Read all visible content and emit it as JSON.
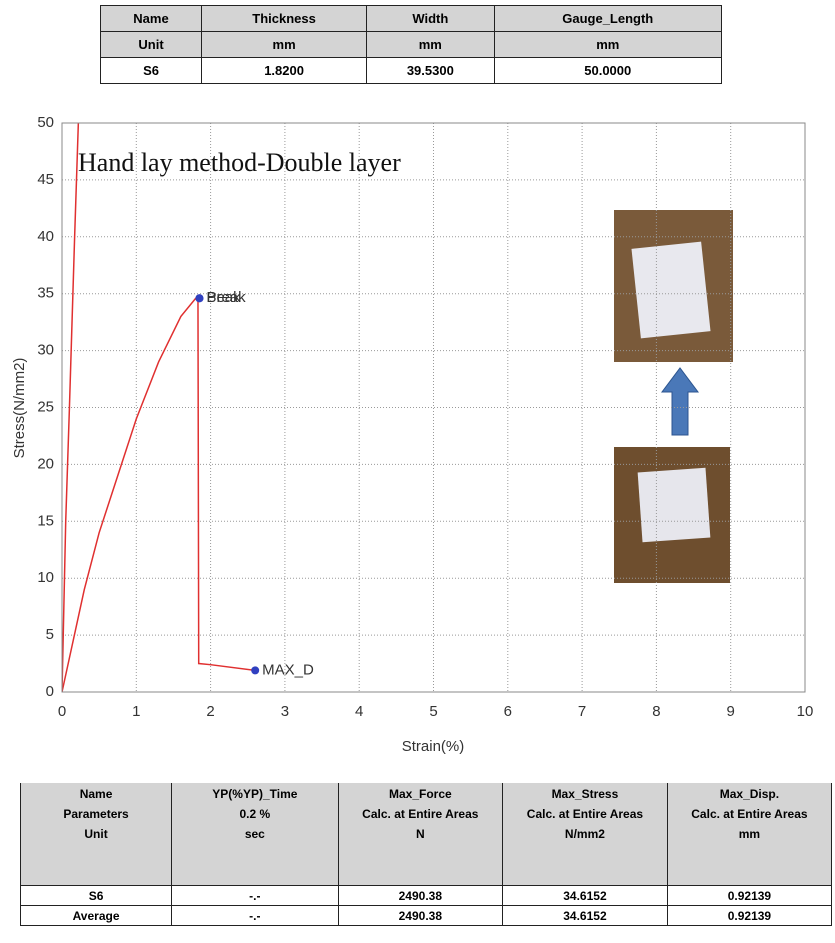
{
  "top_table": {
    "header_rows": [
      [
        "Name",
        "Thickness",
        "Width",
        "Gauge_Length"
      ],
      [
        "Unit",
        "mm",
        "mm",
        "mm"
      ]
    ],
    "rows": [
      [
        "S6",
        "1.8200",
        "39.5300",
        "50.0000"
      ]
    ]
  },
  "chart_data": {
    "type": "line",
    "title": "Hand lay method-Double layer",
    "x_label": "Strain(%)",
    "y_label": "Stress(N/mm2)",
    "xlim": [
      0,
      10
    ],
    "ylim": [
      0,
      50
    ],
    "xticks": [
      0,
      1,
      2,
      3,
      4,
      5,
      6,
      7,
      8,
      9,
      10
    ],
    "yticks": [
      0,
      5,
      10,
      15,
      20,
      25,
      30,
      35,
      40,
      45,
      50
    ],
    "grid": true,
    "series": [
      {
        "color": "#e03030",
        "x": [
          0,
          0.05,
          0.1,
          0.17,
          0.22
        ],
        "values": [
          0,
          15,
          25,
          40,
          50
        ]
      },
      {
        "color": "#e03030",
        "x": [
          0,
          0.1,
          0.3,
          0.5,
          0.8,
          1.0,
          1.3,
          1.6,
          1.8,
          1.83,
          1.84,
          2.0,
          2.6
        ],
        "values": [
          0,
          3,
          9,
          14,
          20,
          24,
          29,
          33,
          34.6,
          34.6,
          2.5,
          2.4,
          1.9
        ]
      }
    ],
    "annotations": [
      {
        "text": "Peak",
        "x": 1.85,
        "y": 34.6,
        "color": "#3040c0"
      },
      {
        "text": "Break",
        "x": 1.85,
        "y": 34.6,
        "color": "#3040c0"
      },
      {
        "text": "MAX_D",
        "x": 2.6,
        "y": 1.9,
        "color": "#3040c0"
      }
    ]
  },
  "bottom_table": {
    "header_rows": [
      [
        [
          "Name",
          "Parameters",
          "Unit"
        ],
        [
          "YP(%YP)_Time",
          "0.2 %",
          "sec"
        ],
        [
          "Max_Force",
          "Calc. at Entire Areas",
          "N"
        ],
        [
          "Max_Stress",
          "Calc. at Entire Areas",
          "N/mm2"
        ],
        [
          "Max_Disp.",
          "Calc. at Entire Areas",
          "mm"
        ]
      ]
    ],
    "rows": [
      [
        "S6",
        "-.-",
        "2490.38",
        "34.6152",
        "0.92139"
      ],
      [
        "Average",
        "-.-",
        "2490.38",
        "34.6152",
        "0.92139"
      ]
    ]
  }
}
